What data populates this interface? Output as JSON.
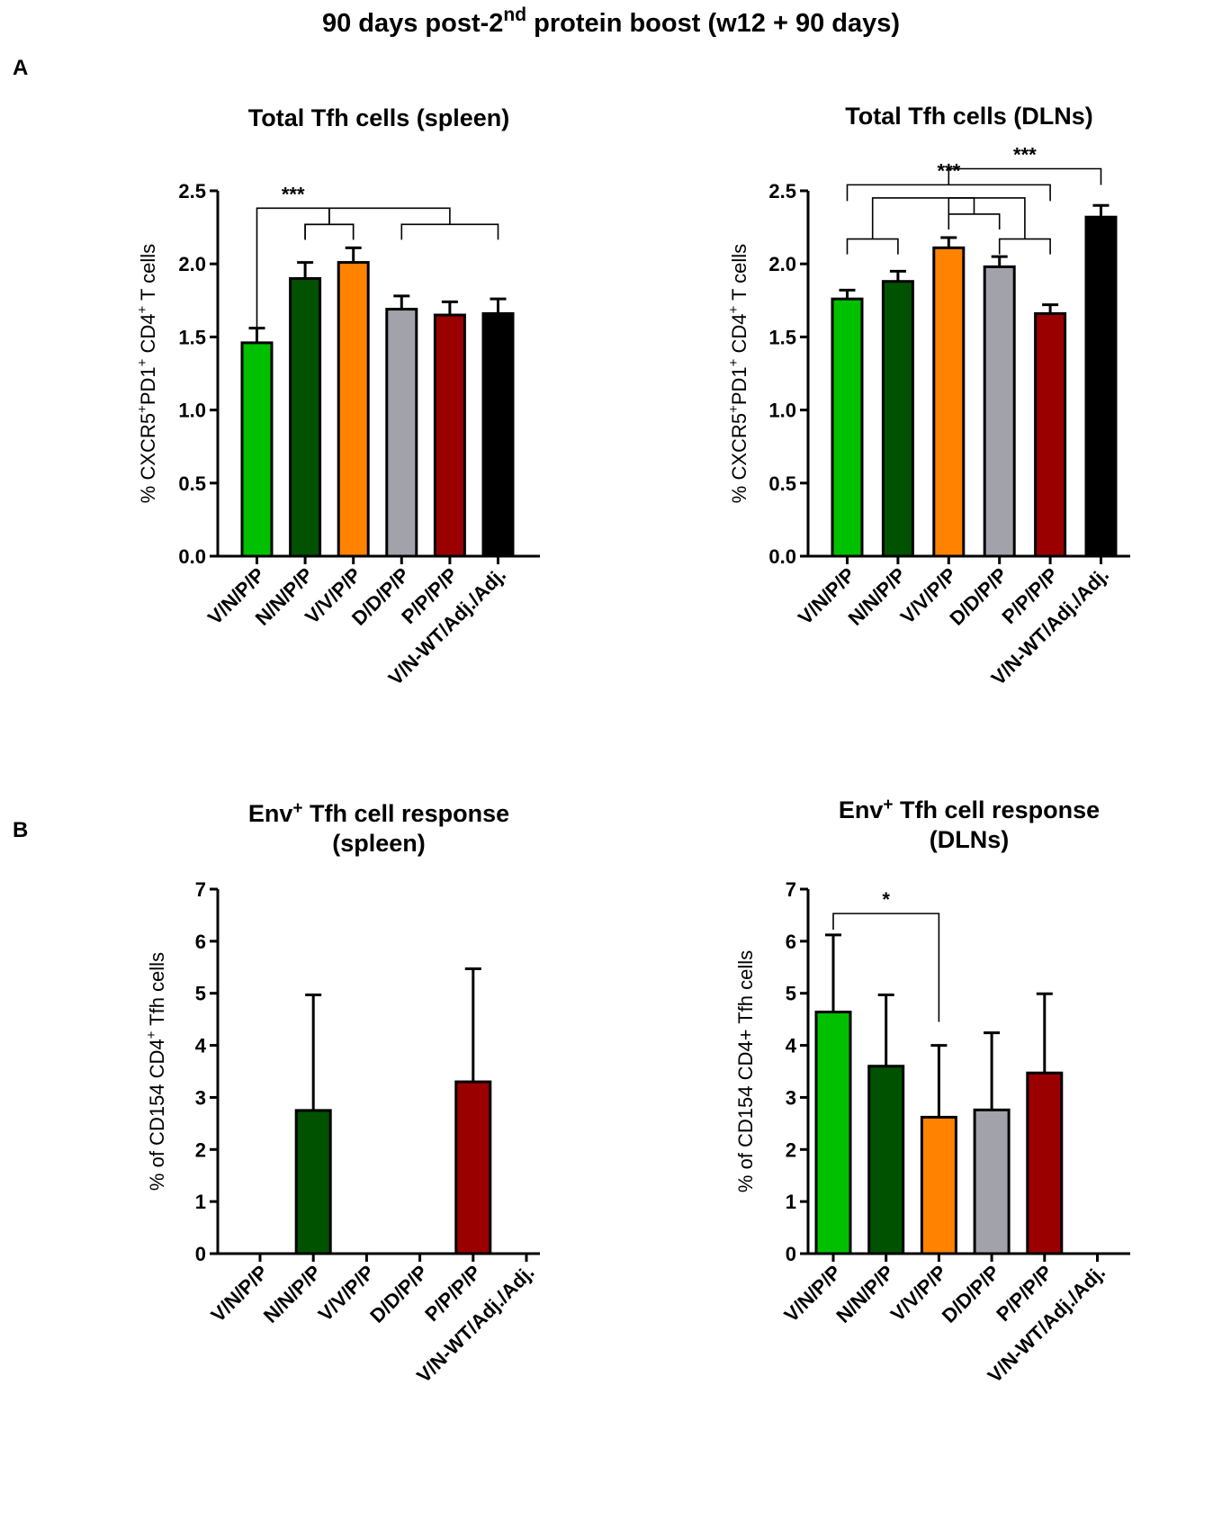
{
  "figure": {
    "title_prefix": "90 days post-2",
    "title_sup": "nd",
    "title_suffix": " protein boost (w12 + 90 days)",
    "panel_a": "A",
    "panel_b": "B"
  },
  "colors": {
    "V/N/P/P": "#00c000",
    "N/N/P/P": "#005200",
    "V/V/P/P": "#ff8200",
    "D/D/P/P": "#a2a2aa",
    "P/P/P/P": "#9a0000",
    "V/N-WT/Adj./Adj.": "#000000"
  },
  "chart_data": [
    {
      "type": "bar",
      "title_lines": [
        [
          {
            "t": "Total Tfh cells (spleen)"
          }
        ]
      ],
      "ylabel": [
        {
          "t": "% CXCR5"
        },
        {
          "t": "+",
          "sup": true
        },
        {
          "t": "PD1"
        },
        {
          "t": "+",
          "sup": true
        },
        {
          "t": " CD4"
        },
        {
          "t": "+",
          "sup": true
        },
        {
          "t": " T cells"
        }
      ],
      "categories": [
        "V/N/P/P",
        "N/N/P/P",
        "V/V/P/P",
        "D/D/P/P",
        "P/P/P/P",
        "V/N-WT/Adj./Adj."
      ],
      "values": [
        1.46,
        1.9,
        2.01,
        1.69,
        1.65,
        1.66
      ],
      "errors": [
        0.1,
        0.11,
        0.1,
        0.09,
        0.09,
        0.1
      ],
      "ylim": [
        0,
        2.5
      ],
      "yticks": [
        "0.0",
        "0.5",
        "1.0",
        "1.5",
        "2.0",
        "2.5"
      ],
      "significance": [
        {
          "label": "***",
          "level": 0.73,
          "left": {
            "type": "single",
            "cat": 0,
            "val": 1.46
          },
          "right": {
            "type": "group",
            "from": 1,
            "to": 2,
            "y": 2.27
          }
        },
        {
          "label": "",
          "level": 0.77,
          "left": {
            "type": "group",
            "from": 1,
            "to": 2,
            "y": 2.27
          },
          "right": {
            "type": "group",
            "from": 3,
            "to": 5,
            "y": 2.27
          }
        }
      ]
    },
    {
      "type": "bar",
      "title_lines": [
        [
          {
            "t": "Total Tfh cells (DLNs)"
          }
        ]
      ],
      "ylabel": [
        {
          "t": "% CXCR5"
        },
        {
          "t": "+",
          "sup": true
        },
        {
          "t": "PD1"
        },
        {
          "t": "+",
          "sup": true
        },
        {
          "t": " CD4"
        },
        {
          "t": "+",
          "sup": true
        },
        {
          "t": " T cells"
        }
      ],
      "categories": [
        "V/N/P/P",
        "N/N/P/P",
        "V/V/P/P",
        "D/D/P/P",
        "P/P/P/P",
        "V/N-WT/Adj./Adj."
      ],
      "values": [
        1.76,
        1.88,
        2.11,
        1.98,
        1.66,
        2.32
      ],
      "errors": [
        0.06,
        0.07,
        0.07,
        0.07,
        0.06,
        0.08
      ],
      "ylim": [
        0,
        2.5
      ],
      "yticks": [
        "0.0",
        "0.5",
        "1.0",
        "1.5",
        "2.0",
        "2.5"
      ],
      "significance": [
        {
          "label": "",
          "level": 0.62,
          "left": {
            "type": "group",
            "from": 0,
            "to": 1,
            "y": 2.17
          },
          "right": {
            "type": "group",
            "from": 2,
            "to": 3,
            "y": 2.34
          }
        },
        {
          "label": "***",
          "level": 0.58,
          "left": {
            "type": "single",
            "cat": 0,
            "val": 2.43
          },
          "right": {
            "type": "single",
            "cat": 4,
            "val": 2.43
          }
        },
        {
          "label": "***",
          "level": 0.62,
          "left": {
            "type": "single",
            "cat": 2,
            "val": 2.54
          },
          "right": {
            "type": "single",
            "cat": 5,
            "val": 2.54
          }
        },
        {
          "label": "",
          "level": 0.61,
          "left": {
            "type": "single",
            "cat": 2,
            "val": 2.34
          },
          "right": {
            "type": "group",
            "from": 3,
            "to": 4,
            "y": 2.17
          }
        }
      ]
    },
    {
      "type": "bar",
      "title_lines": [
        [
          {
            "t": "Env"
          },
          {
            "t": "+",
            "sup": true
          },
          {
            "t": " Tfh cell response"
          }
        ],
        [
          {
            "t": "(spleen)"
          }
        ]
      ],
      "ylabel": [
        {
          "t": "% of CD154 CD4"
        },
        {
          "t": "+",
          "sup": true
        },
        {
          "t": " Tfh cells"
        }
      ],
      "categories": [
        "V/N/P/P",
        "N/N/P/P",
        "V/V/P/P",
        "D/D/P/P",
        "P/P/P/P",
        "V/N-WT/Adj./Adj."
      ],
      "values": [
        0,
        2.75,
        0,
        0,
        3.3,
        0
      ],
      "errors": [
        0,
        2.22,
        0,
        0,
        2.17,
        0
      ],
      "ylim": [
        0,
        7
      ],
      "yticks": [
        "0",
        "1",
        "2",
        "3",
        "4",
        "5",
        "6",
        "7"
      ],
      "significance": []
    },
    {
      "type": "bar",
      "title_lines": [
        [
          {
            "t": "Env"
          },
          {
            "t": "+",
            "sup": true
          },
          {
            "t": " Tfh cell response"
          }
        ],
        [
          {
            "t": "(DLNs)"
          }
        ]
      ],
      "ylabel": [
        {
          "t": "% of CD154 CD4+ Tfh cells"
        }
      ],
      "categories": [
        "V/N/P/P",
        "N/N/P/P",
        "V/V/P/P",
        "D/D/P/P",
        "P/P/P/P",
        "V/N-WT/Adj./Adj."
      ],
      "values": [
        4.64,
        3.6,
        2.62,
        2.76,
        3.47,
        0
      ],
      "errors": [
        1.48,
        1.37,
        1.38,
        1.48,
        1.52,
        0
      ],
      "ylim": [
        0,
        7
      ],
      "yticks": [
        "0",
        "1",
        "2",
        "3",
        "4",
        "5",
        "6",
        "7"
      ],
      "significance": [
        {
          "label": "*",
          "level": 0.0,
          "left": {
            "type": "single",
            "cat": 0,
            "val": 6.22
          },
          "right": {
            "type": "single",
            "cat": 2,
            "val": 4.45
          }
        }
      ]
    }
  ]
}
